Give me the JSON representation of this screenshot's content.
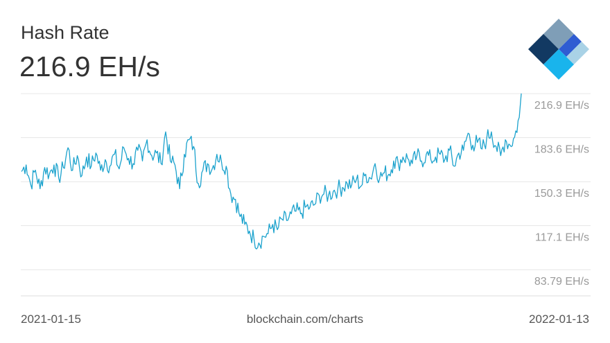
{
  "header": {
    "title": "Hash Rate",
    "current_value": "216.9 EH/s"
  },
  "footer": {
    "start_date": "2021-01-15",
    "source": "blockchain.com/charts",
    "end_date": "2022-01-13"
  },
  "logo": {
    "icon": "blockchain-logo-icon",
    "colors": [
      "#7f9eb7",
      "#123962",
      "#2f5cd2",
      "#a9d2e6",
      "#19b4ec"
    ]
  },
  "colors": {
    "line": "#1ba2cd",
    "grid": "#e6e6e6",
    "tick_text": "#999999"
  },
  "chart_data": {
    "type": "line",
    "title": "Hash Rate",
    "xlabel": "",
    "ylabel": "",
    "x_range": [
      "2021-01-15",
      "2022-01-13"
    ],
    "y_range": [
      64,
      218
    ],
    "y_ticks": [
      216.9,
      183.6,
      150.3,
      117.1,
      83.79
    ],
    "y_tick_labels": [
      "216.9 EH/s",
      "183.6 EH/s",
      "150.3 EH/s",
      "117.1 EH/s",
      "83.79 EH/s"
    ],
    "grid": true,
    "legend": "none",
    "series": [
      {
        "values": [
          [
            1,
            158
          ],
          [
            8,
            163
          ],
          [
            15,
            148
          ],
          [
            22,
            159
          ],
          [
            29,
            145
          ],
          [
            36,
            161
          ],
          [
            43,
            156
          ],
          [
            50,
            163
          ],
          [
            57,
            153
          ],
          [
            64,
            161
          ],
          [
            71,
            176
          ],
          [
            78,
            159
          ],
          [
            85,
            170
          ],
          [
            92,
            155
          ],
          [
            99,
            169
          ],
          [
            106,
            162
          ],
          [
            113,
            172
          ],
          [
            120,
            159
          ],
          [
            127,
            167
          ],
          [
            134,
            162
          ],
          [
            141,
            171
          ],
          [
            148,
            160
          ],
          [
            155,
            176
          ],
          [
            162,
            168
          ],
          [
            169,
            164
          ],
          [
            176,
            174
          ],
          [
            183,
            166
          ],
          [
            190,
            182
          ],
          [
            197,
            170
          ],
          [
            204,
            172
          ],
          [
            211,
            164
          ],
          [
            218,
            188
          ],
          [
            225,
            166
          ],
          [
            232,
            163
          ],
          [
            239,
            145
          ],
          [
            246,
            171
          ],
          [
            253,
            182
          ],
          [
            260,
            177
          ],
          [
            267,
            149
          ],
          [
            274,
            159
          ],
          [
            281,
            164
          ],
          [
            288,
            160
          ],
          [
            295,
            171
          ],
          [
            302,
            165
          ],
          [
            309,
            162
          ],
          [
            316,
            141
          ],
          [
            323,
            137
          ],
          [
            330,
            124
          ],
          [
            337,
            118
          ],
          [
            344,
            113
          ],
          [
            351,
            107
          ],
          [
            358,
            104
          ],
          [
            365,
            109
          ],
          [
            372,
            111
          ],
          [
            379,
            118
          ],
          [
            386,
            114
          ],
          [
            393,
            122
          ],
          [
            400,
            121
          ],
          [
            407,
            126
          ],
          [
            414,
            128
          ],
          [
            421,
            126
          ],
          [
            428,
            131
          ],
          [
            435,
            131
          ],
          [
            442,
            133
          ],
          [
            449,
            140
          ],
          [
            456,
            141
          ],
          [
            463,
            140
          ],
          [
            470,
            143
          ],
          [
            477,
            145
          ],
          [
            484,
            146
          ],
          [
            491,
            149
          ],
          [
            498,
            148
          ],
          [
            505,
            152
          ],
          [
            512,
            147
          ],
          [
            519,
            156
          ],
          [
            526,
            153
          ],
          [
            533,
            164
          ],
          [
            540,
            153
          ],
          [
            547,
            157
          ],
          [
            554,
            156
          ],
          [
            561,
            166
          ],
          [
            568,
            164
          ],
          [
            575,
            169
          ],
          [
            582,
            168
          ],
          [
            589,
            164
          ],
          [
            596,
            170
          ],
          [
            603,
            166
          ],
          [
            610,
            171
          ],
          [
            617,
            167
          ],
          [
            624,
            169
          ],
          [
            631,
            171
          ],
          [
            638,
            167
          ],
          [
            645,
            174
          ],
          [
            652,
            162
          ],
          [
            659,
            172
          ],
          [
            666,
            174
          ],
          [
            673,
            187
          ],
          [
            680,
            178
          ],
          [
            687,
            180
          ],
          [
            694,
            175
          ],
          [
            701,
            183
          ],
          [
            708,
            188
          ],
          [
            715,
            177
          ],
          [
            722,
            170
          ],
          [
            729,
            182
          ],
          [
            736,
            178
          ],
          [
            743,
            184
          ],
          [
            750,
            199
          ],
          [
            753,
            217
          ]
        ]
      }
    ]
  }
}
